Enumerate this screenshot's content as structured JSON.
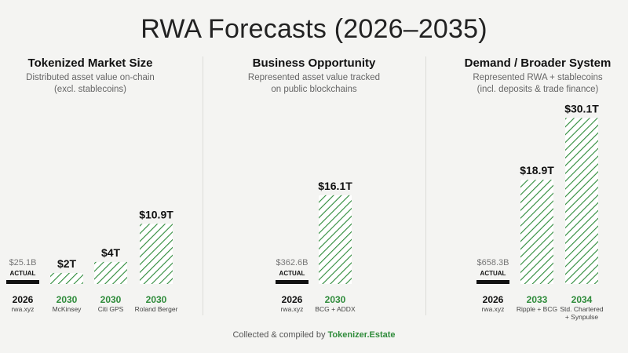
{
  "title": "RWA Forecasts (2026–2035)",
  "colors": {
    "green": "#2e8b3a",
    "black": "#111111",
    "gray_text": "#666666"
  },
  "footer": {
    "prefix": "Collected & compiled by",
    "brand": "Tokenizer.Estate"
  },
  "panels": [
    {
      "title": "Tokenized Market Size",
      "subtitle_line1": "Distributed asset value on-chain",
      "subtitle_line2": "(excl. stablecoins)"
    },
    {
      "title": "Business Opportunity",
      "subtitle_line1": "Represented asset value tracked",
      "subtitle_line2": "on public blockchains"
    },
    {
      "title": "Demand / Broader System",
      "subtitle_line1": "Represented RWA + stablecoins",
      "subtitle_line2": "(incl. deposits & trade finance)"
    }
  ],
  "actual_label": "ACTUAL",
  "chart_data": [
    {
      "type": "bar",
      "unit": "trillion USD",
      "bars": [
        {
          "year": "2026",
          "source": "rwa.xyz",
          "value": 0.0251,
          "label": "$25.1B",
          "kind": "actual"
        },
        {
          "year": "2030",
          "source": "McKinsey",
          "value": 2,
          "label": "$2T",
          "kind": "forecast"
        },
        {
          "year": "2030",
          "source": "Citi GPS",
          "value": 4,
          "label": "$4T",
          "kind": "forecast"
        },
        {
          "year": "2030",
          "source": "Roland Berger",
          "value": 10.9,
          "label": "$10.9T",
          "kind": "forecast"
        }
      ]
    },
    {
      "type": "bar",
      "unit": "trillion USD",
      "bars": [
        {
          "year": "2026",
          "source": "rwa.xyz",
          "value": 0.3626,
          "label": "$362.6B",
          "kind": "actual"
        },
        {
          "year": "2030",
          "source": "BCG + ADDX",
          "value": 16.1,
          "label": "$16.1T",
          "kind": "forecast"
        }
      ]
    },
    {
      "type": "bar",
      "unit": "trillion USD",
      "bars": [
        {
          "year": "2026",
          "source": "rwa.xyz",
          "value": 0.6583,
          "label": "$658.3B",
          "kind": "actual"
        },
        {
          "year": "2033",
          "source": "Ripple + BCG",
          "value": 18.9,
          "label": "$18.9T",
          "kind": "forecast"
        },
        {
          "year": "2034",
          "source": "Std. Chartered",
          "source_line2": "+ Synpulse",
          "value": 30.1,
          "label": "$30.1T",
          "kind": "forecast"
        }
      ]
    }
  ]
}
